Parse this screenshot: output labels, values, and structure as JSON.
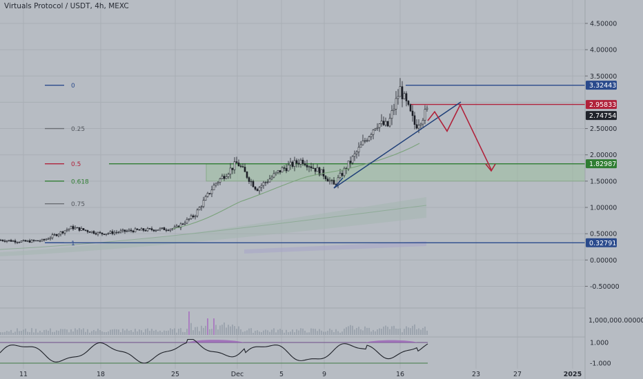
{
  "header": {
    "symbol": "Virtuals Protocol / USDT",
    "interval": "4h",
    "exchange": "MEXC"
  },
  "price_axis_labels": [
    "4.50000",
    "4.00000",
    "3.50000",
    "2.50000",
    "2.00000",
    "1.50000",
    "1.00000",
    "0.50000",
    "0.00000",
    "-0.50000"
  ],
  "volume_axis_label": "1,000,000.00000",
  "osc_axis_labels": [
    "1.000",
    "-1.000"
  ],
  "time_axis_labels": [
    "11",
    "18",
    "25",
    "Dec",
    "5",
    "9",
    "16",
    "23",
    "27",
    "2025"
  ],
  "fib_levels": [
    {
      "label": "0",
      "price": 3.32443,
      "color": "#2a4a8c"
    },
    {
      "label": "0.25",
      "price": 2.5,
      "color": "#6a6d73"
    },
    {
      "label": "0.5",
      "price": 1.82987,
      "color": "#b0213a"
    },
    {
      "label": "0.618",
      "price": 1.5,
      "color": "#2f7d32"
    },
    {
      "label": "0.75",
      "price": 1.07,
      "color": "#6a6d73"
    },
    {
      "label": "1",
      "price": 0.32791,
      "color": "#2a4a8c"
    }
  ],
  "price_tags": [
    {
      "label": "3.32443",
      "price": 3.32443,
      "bg": "#2a4a8c"
    },
    {
      "label": "2.95833",
      "price": 2.95833,
      "bg": "#b0213a"
    },
    {
      "label": "2.74754",
      "price": 2.74754,
      "bg": "#20232b"
    },
    {
      "label": "1.82987",
      "price": 1.82987,
      "bg": "#2f7d32"
    },
    {
      "label": "0.32791",
      "price": 0.32791,
      "bg": "#2a4a8c"
    }
  ],
  "colors": {
    "background": "#b7bcc3",
    "grid": "#a9aeb5",
    "candle": "#1c1f26",
    "support_zone": "#9fc0a0",
    "fib0_line": "#2a4a8c",
    "resistance_line": "#b0213a",
    "support_line": "#2f7d32",
    "trend_line": "#1f3f78",
    "projection_arrow": "#b0213a",
    "ma_line": "#7aa27a",
    "oscillator": "#1c1f26",
    "oscillator_fill": "#9b63b6",
    "volume_bar": "#8f9aa3",
    "volume_spike": "#a461c0"
  },
  "chart_data": {
    "type": "candlestick",
    "title": "Virtuals Protocol / USDT, 4h, MEXC",
    "ylim": [
      -0.7,
      4.95
    ],
    "x_ticks": [
      "11",
      "18",
      "25",
      "Dec",
      "5",
      "9",
      "16",
      "23",
      "27",
      "2025"
    ],
    "close_path": [
      {
        "x": "Nov 8",
        "y": 0.38
      },
      {
        "x": "Nov 11",
        "y": 0.35
      },
      {
        "x": "Nov 13",
        "y": 0.37
      },
      {
        "x": "Nov 15",
        "y": 0.62
      },
      {
        "x": "Nov 18",
        "y": 0.5
      },
      {
        "x": "Nov 21",
        "y": 0.56
      },
      {
        "x": "Nov 25",
        "y": 0.6
      },
      {
        "x": "Nov 27",
        "y": 0.85
      },
      {
        "x": "Nov 29",
        "y": 1.45
      },
      {
        "x": "Dec 1",
        "y": 1.85
      },
      {
        "x": "Dec 3",
        "y": 1.35
      },
      {
        "x": "Dec 5",
        "y": 1.72
      },
      {
        "x": "Dec 7",
        "y": 1.9
      },
      {
        "x": "Dec 9",
        "y": 1.62
      },
      {
        "x": "Dec 10",
        "y": 1.42
      },
      {
        "x": "Dec 12",
        "y": 1.95
      },
      {
        "x": "Dec 14",
        "y": 2.6
      },
      {
        "x": "Dec 15",
        "y": 2.55
      },
      {
        "x": "Dec 16",
        "y": 3.25
      },
      {
        "x": "Dec 17",
        "y": 2.55
      },
      {
        "x": "Dec 18",
        "y": 2.85
      }
    ],
    "last_price": 2.74754,
    "fib_retracement": {
      "levels": [
        "0",
        "0.25",
        "0.5",
        "0.618",
        "0.75",
        "1"
      ],
      "high": 3.32443,
      "low": 0.32791
    },
    "horizontal_levels": [
      3.32443,
      2.95833,
      1.82987,
      0.32791
    ],
    "support_zone": [
      1.5,
      1.82987
    ],
    "projection": [
      {
        "x": "Dec 18",
        "y": 2.65
      },
      {
        "x": "Dec 19",
        "y": 2.82
      },
      {
        "x": "Dec 20",
        "y": 2.45
      },
      {
        "x": "Dec 21",
        "y": 2.95
      },
      {
        "x": "Dec 24",
        "y": 1.72
      }
    ],
    "oscillator_ylim": [
      -1,
      1
    ]
  }
}
